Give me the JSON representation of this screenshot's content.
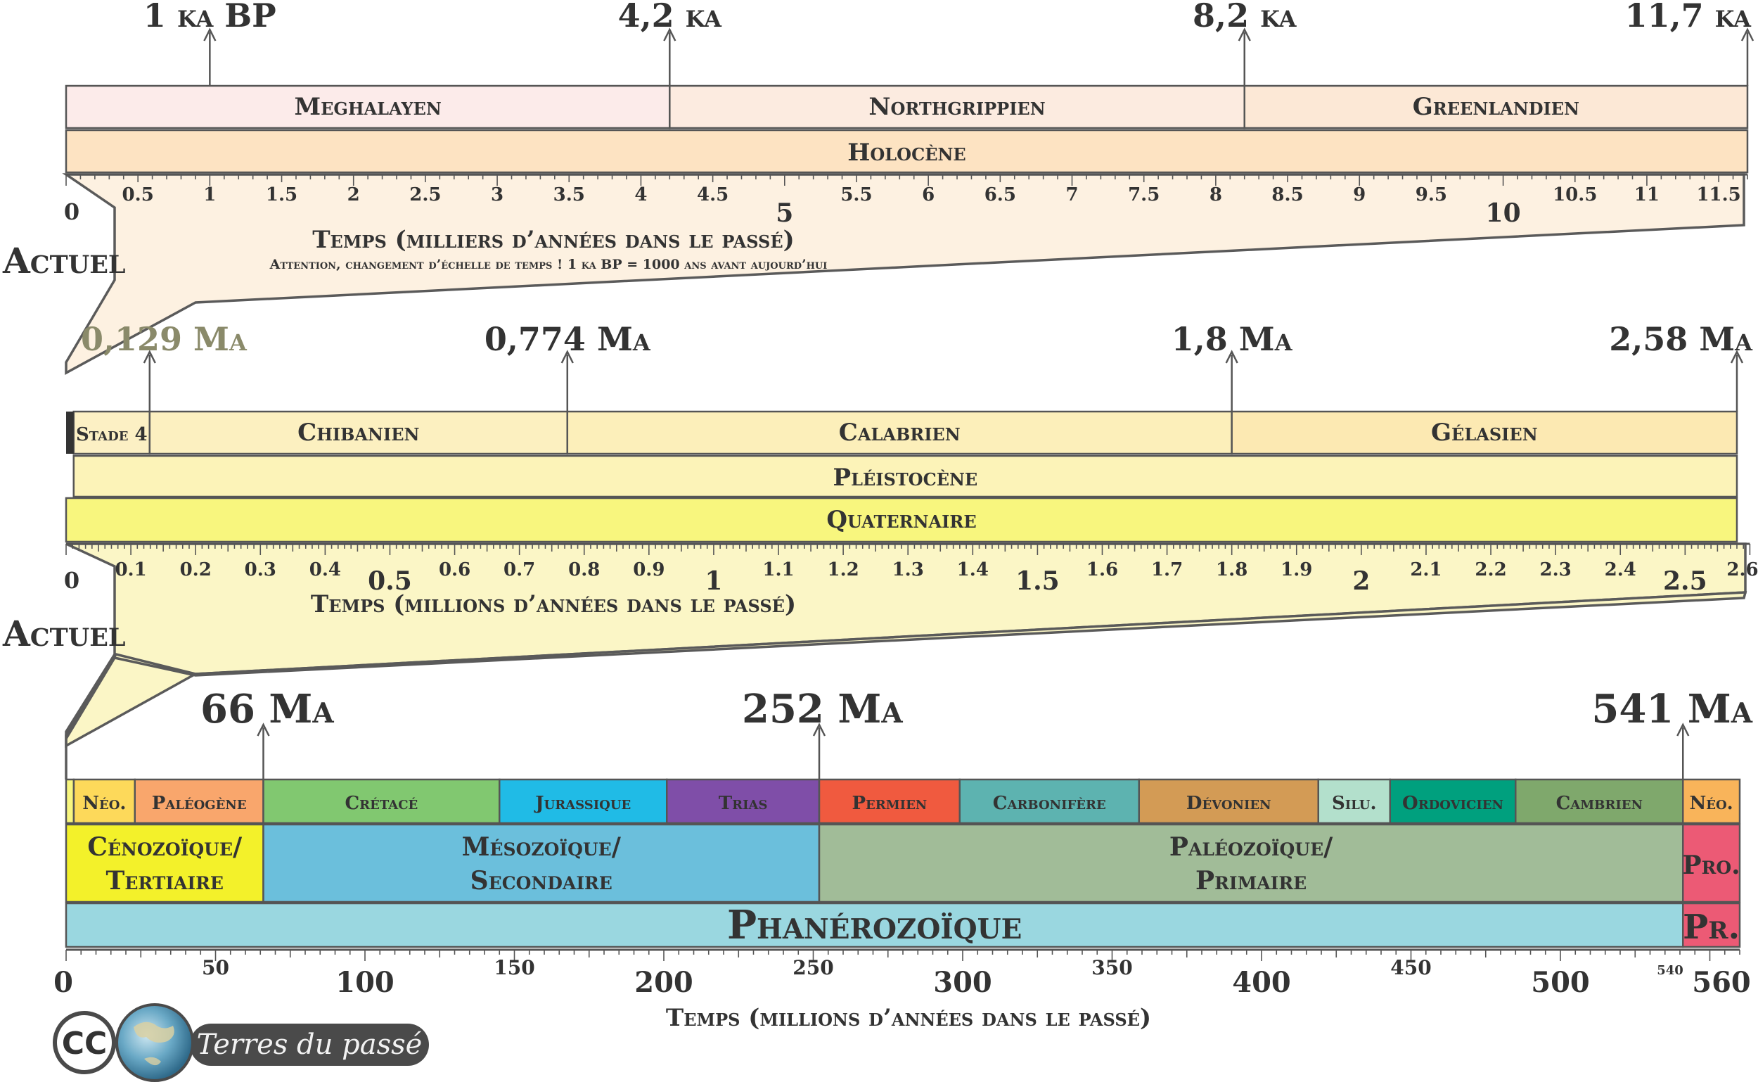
{
  "colors": {
    "holocene_funnel": "#fdf1e1",
    "pleisto_funnel": "#fbf6c6",
    "phanero_funnel": "#fbf6c6",
    "text": "#333333",
    "stroke": "#555555"
  },
  "timeline_ka": {
    "markers": [
      {
        "label": "1 ka BP",
        "value": 1
      },
      {
        "label": "4,2 ka",
        "value": 4.2
      },
      {
        "label": "8,2 ka",
        "value": 8.2
      },
      {
        "label": "11,7 ka",
        "value": 11.7
      }
    ],
    "stages": [
      {
        "name": "Meghalayen",
        "start": 0,
        "end": 4.2,
        "color": "#fcebea"
      },
      {
        "name": "Northgrippien",
        "start": 4.2,
        "end": 8.2,
        "color": "#fcebe0"
      },
      {
        "name": "Greenlandien",
        "start": 8.2,
        "end": 11.7,
        "color": "#fce8d6"
      }
    ],
    "epoch": {
      "name": "Holocène",
      "start": 0,
      "end": 11.7,
      "color": "#fde3c2"
    },
    "tick_labels": [
      "0.5",
      "1",
      "1.5",
      "2",
      "2.5",
      "3",
      "3.5",
      "4",
      "4.5",
      "5",
      "5.5",
      "6",
      "6.5",
      "7",
      "7.5",
      "8",
      "8.5",
      "9",
      "9.5",
      "10",
      "10.5",
      "11",
      "11.5"
    ],
    "zero_label": "0",
    "axis_title": "Temps (milliers d’années dans le passé)",
    "note": "Attention, changement d’échelle de temps ! 1 ka BP = 1000 ans avant aujourd’hui",
    "present_label": "Actuel"
  },
  "timeline_ma_quaternary": {
    "markers": [
      {
        "label": "0,129 Ma",
        "value": 0.129
      },
      {
        "label": "0,774 Ma",
        "value": 0.774
      },
      {
        "label": "1,8 Ma",
        "value": 1.8
      },
      {
        "label": "2,58 Ma",
        "value": 2.58
      }
    ],
    "stages": [
      {
        "name": "Stade 4",
        "start": 0.0117,
        "end": 0.129,
        "color": "#fcf0c4"
      },
      {
        "name": "Chibanien",
        "start": 0.129,
        "end": 0.774,
        "color": "#fcf0c0"
      },
      {
        "name": "Calabrien",
        "start": 0.774,
        "end": 1.8,
        "color": "#fcefba"
      },
      {
        "name": "Gélasien",
        "start": 1.8,
        "end": 2.58,
        "color": "#fce9b2"
      }
    ],
    "epoch": {
      "name": "Pléistocène",
      "start": 0.0117,
      "end": 2.58,
      "color": "#fcf3b8"
    },
    "period": {
      "name": "Quaternaire",
      "start": 0,
      "end": 2.58,
      "color": "#f8f67e"
    },
    "tick_labels": [
      "0.1",
      "0.2",
      "0.3",
      "0.4",
      "0.5",
      "0.6",
      "0.7",
      "0.8",
      "0.9",
      "1",
      "1.1",
      "1.2",
      "1.3",
      "1.4",
      "1.5",
      "1.6",
      "1.7",
      "1.8",
      "1.9",
      "2",
      "2.1",
      "2.2",
      "2.3",
      "2.4",
      "2.5",
      "2.6"
    ],
    "zero_label": "0",
    "axis_title": "Temps (millions d’années dans le passé)",
    "present_label": "Actuel"
  },
  "timeline_ma_phanerozoic": {
    "markers": [
      {
        "label": "66 Ma",
        "value": 66
      },
      {
        "label": "252 Ma",
        "value": 252
      },
      {
        "label": "541 Ma",
        "value": 541
      }
    ],
    "periods": [
      {
        "name": "Néo.",
        "start": 2.58,
        "end": 23,
        "color": "#fdd95a"
      },
      {
        "name": "Paléogène",
        "start": 23,
        "end": 66,
        "color": "#f9a66c"
      },
      {
        "name": "Crétacé",
        "start": 66,
        "end": 145,
        "color": "#81c870"
      },
      {
        "name": "Jurassique",
        "start": 145,
        "end": 201,
        "color": "#20bbe6"
      },
      {
        "name": "Trias",
        "start": 201,
        "end": 252,
        "color": "#7f4ea8"
      },
      {
        "name": "Permien",
        "start": 252,
        "end": 299,
        "color": "#f05a3f"
      },
      {
        "name": "Carbonifère",
        "start": 299,
        "end": 359,
        "color": "#5db3b0"
      },
      {
        "name": "Dévonien",
        "start": 359,
        "end": 419,
        "color": "#d39b55"
      },
      {
        "name": "Silu.",
        "start": 419,
        "end": 443,
        "color": "#b3e0cc"
      },
      {
        "name": "Ordovicien",
        "start": 443,
        "end": 485,
        "color": "#00a07e"
      },
      {
        "name": "Cambrien",
        "start": 485,
        "end": 541,
        "color": "#7fa86c"
      },
      {
        "name": "Néo.",
        "start": 541,
        "end": 560,
        "color": "#f9b45a"
      }
    ],
    "eras": [
      {
        "line1": "Cénozoïque/",
        "line2": "Tertiaire",
        "start": 0,
        "end": 66,
        "color": "#f3f12a"
      },
      {
        "line1": "Mésozoïque/",
        "line2": "Secondaire",
        "start": 66,
        "end": 252,
        "color": "#6bbfdc"
      },
      {
        "line1": "Paléozoïque/",
        "line2": "Primaire",
        "start": 252,
        "end": 541,
        "color": "#a1bc98"
      },
      {
        "line1": "Pro.",
        "line2": "",
        "start": 541,
        "end": 560,
        "color": "#ec5a75"
      }
    ],
    "eons": [
      {
        "name": "Phanérozoïque",
        "start": 0,
        "end": 541,
        "color": "#9ad7e0"
      },
      {
        "name": "Pr.",
        "start": 541,
        "end": 560,
        "color": "#ec5a75"
      }
    ],
    "major_tick_labels": [
      "0",
      "100",
      "200",
      "300",
      "400",
      "500",
      "560"
    ],
    "minor_tick_labels": [
      "50",
      "150",
      "250",
      "350",
      "450",
      "540"
    ],
    "axis_title": "Temps (millions d’années dans le passé)"
  },
  "credit": {
    "cc_label": "CC",
    "text": "Terres du passé"
  }
}
